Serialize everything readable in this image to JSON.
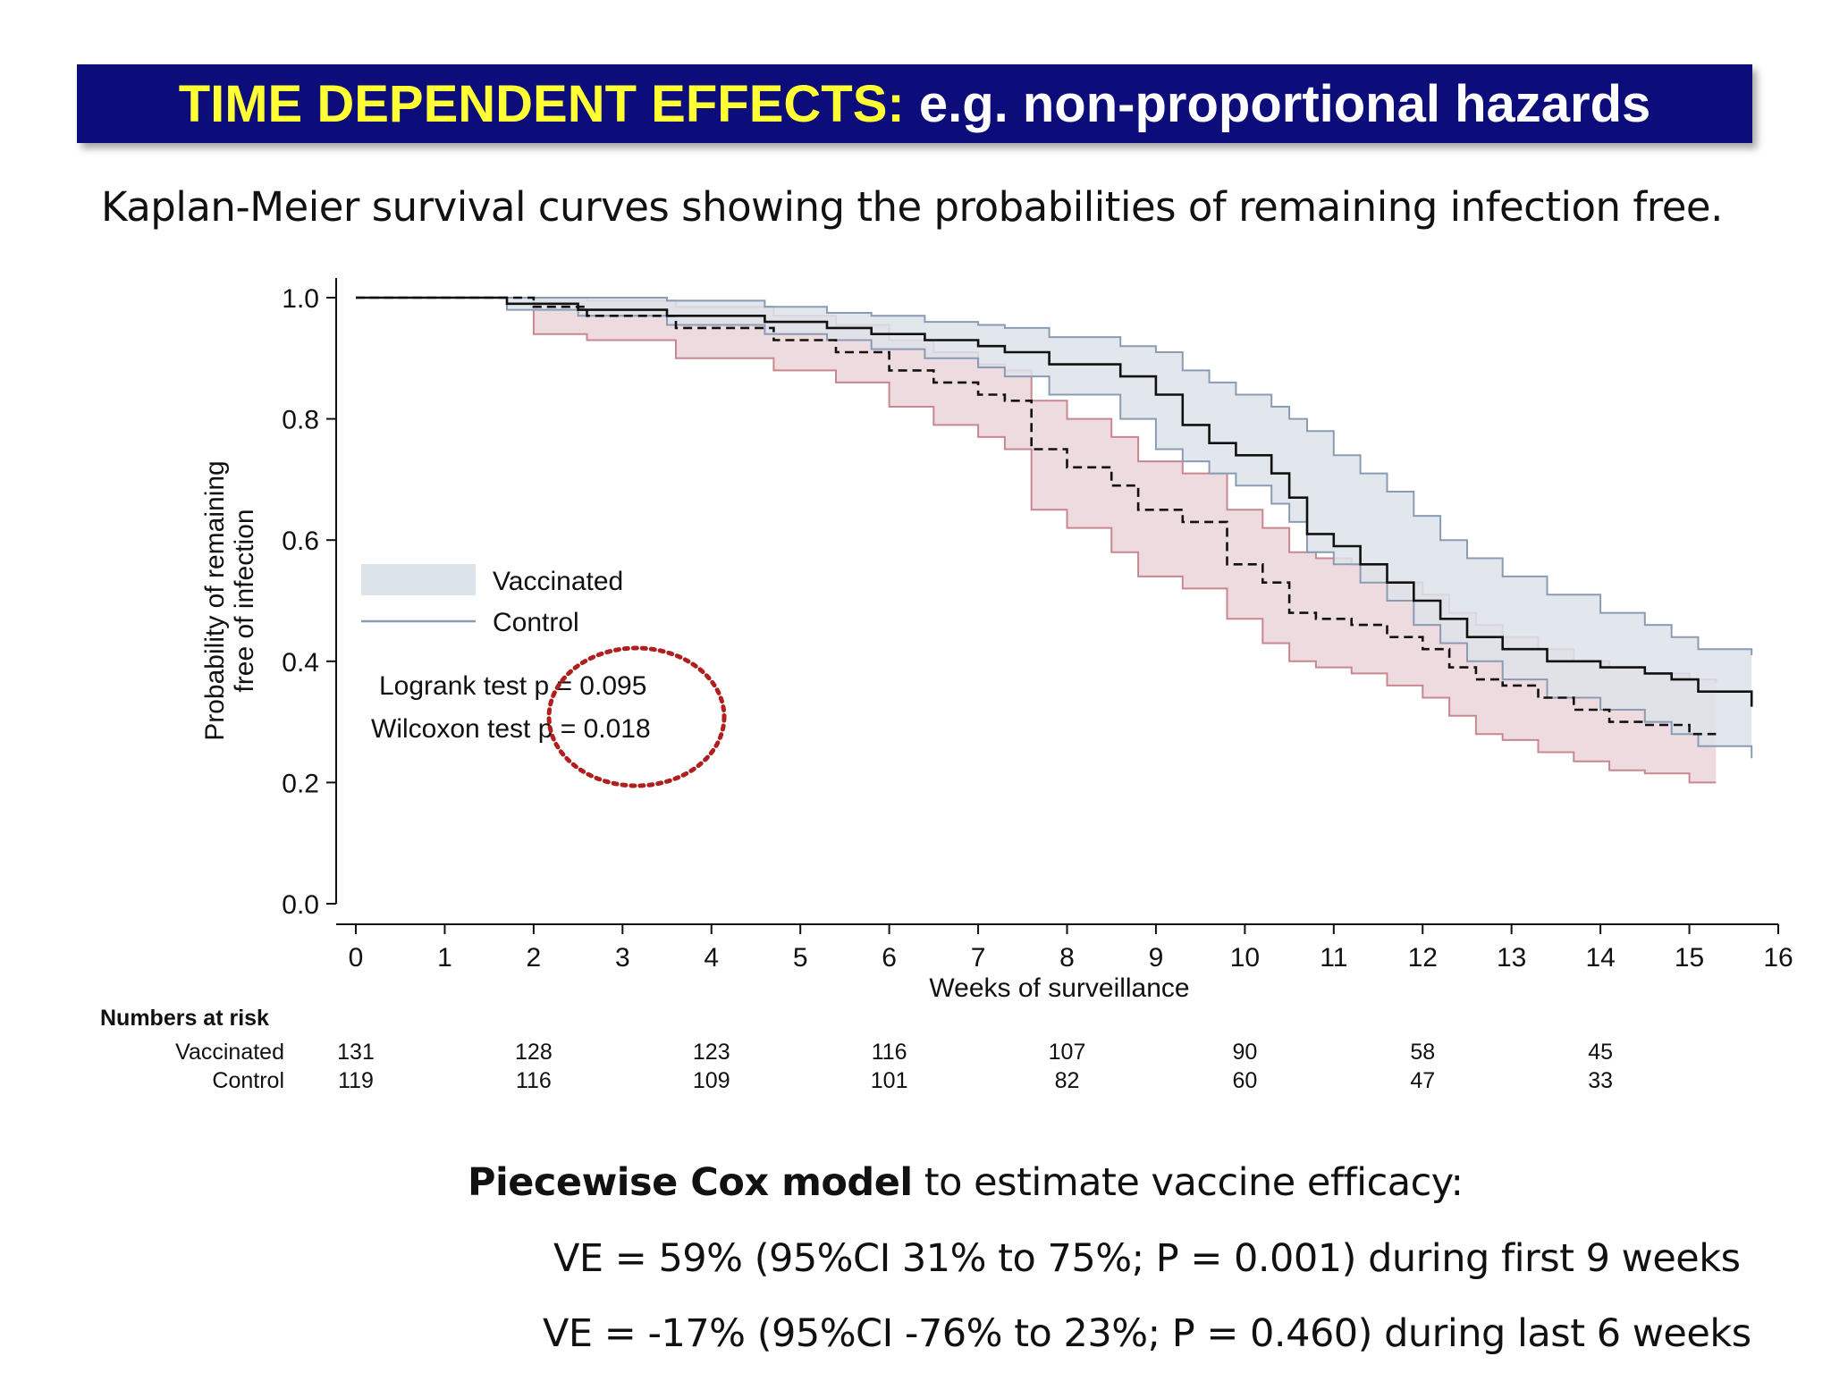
{
  "banner": {
    "highlight": "TIME DEPENDENT EFFECTS:",
    "rest": " e.g. non-proportional hazards"
  },
  "subtitle": "Kaplan-Meier survival curves showing the probabilities of remaining infection free.",
  "chart_data": {
    "type": "line",
    "xlabel": "Weeks of surveillance",
    "ylabel": [
      "Probability of remaining",
      "free of infection"
    ],
    "xlim": [
      0,
      16
    ],
    "ylim": [
      0,
      1.0
    ],
    "xticks": [
      0,
      1,
      2,
      3,
      4,
      5,
      6,
      7,
      8,
      9,
      10,
      11,
      12,
      13,
      14,
      15,
      16
    ],
    "yticks": [
      "0.0",
      "0.2",
      "0.4",
      "0.6",
      "0.8",
      "1.0"
    ],
    "legend": {
      "position": "middle-left",
      "entries": [
        "Vaccinated",
        "Control"
      ]
    },
    "series": [
      {
        "name": "Vaccinated",
        "style": "solid",
        "ci_color": "#dde3ea",
        "ci_edge": "#8a9cb4",
        "x": [
          0,
          1.7,
          2.5,
          3.5,
          4.6,
          5.3,
          5.8,
          6.4,
          7.0,
          7.3,
          7.8,
          8.6,
          9.0,
          9.3,
          9.6,
          9.9,
          10.3,
          10.5,
          10.7,
          11.0,
          11.3,
          11.6,
          11.9,
          12.2,
          12.5,
          12.9,
          13.4,
          14.0,
          14.5,
          14.8,
          15.1,
          15.7
        ],
        "y": [
          1.0,
          0.99,
          0.98,
          0.97,
          0.96,
          0.95,
          0.94,
          0.93,
          0.92,
          0.91,
          0.89,
          0.87,
          0.84,
          0.79,
          0.76,
          0.74,
          0.71,
          0.67,
          0.61,
          0.59,
          0.56,
          0.53,
          0.5,
          0.47,
          0.44,
          0.42,
          0.4,
          0.39,
          0.38,
          0.37,
          0.35,
          0.325
        ],
        "upper": [
          1.0,
          1.0,
          1.0,
          0.995,
          0.985,
          0.975,
          0.97,
          0.96,
          0.955,
          0.95,
          0.935,
          0.92,
          0.91,
          0.88,
          0.86,
          0.84,
          0.82,
          0.8,
          0.78,
          0.74,
          0.71,
          0.68,
          0.64,
          0.6,
          0.57,
          0.54,
          0.51,
          0.48,
          0.46,
          0.44,
          0.42,
          0.41
        ],
        "lower": [
          1.0,
          0.98,
          0.97,
          0.955,
          0.94,
          0.93,
          0.915,
          0.9,
          0.885,
          0.87,
          0.84,
          0.8,
          0.75,
          0.73,
          0.71,
          0.69,
          0.66,
          0.63,
          0.58,
          0.56,
          0.53,
          0.5,
          0.46,
          0.43,
          0.4,
          0.37,
          0.34,
          0.32,
          0.3,
          0.28,
          0.26,
          0.24
        ]
      },
      {
        "name": "Control",
        "style": "dashed",
        "ci_color": "#ecd7dc",
        "ci_edge": "#c9878f",
        "x": [
          0,
          2.0,
          2.6,
          3.6,
          4.7,
          5.4,
          6.0,
          6.5,
          7.0,
          7.3,
          7.6,
          8.0,
          8.5,
          8.8,
          9.3,
          9.8,
          10.2,
          10.5,
          10.8,
          11.2,
          11.6,
          12.0,
          12.3,
          12.6,
          12.9,
          13.3,
          13.7,
          14.1,
          14.5,
          15.0,
          15.3
        ],
        "y": [
          1.0,
          0.985,
          0.97,
          0.95,
          0.93,
          0.91,
          0.88,
          0.86,
          0.84,
          0.83,
          0.75,
          0.72,
          0.69,
          0.65,
          0.63,
          0.56,
          0.53,
          0.48,
          0.47,
          0.46,
          0.44,
          0.42,
          0.39,
          0.37,
          0.36,
          0.34,
          0.32,
          0.3,
          0.295,
          0.28,
          0.28
        ],
        "upper": [
          1.0,
          1.0,
          0.995,
          0.985,
          0.97,
          0.955,
          0.93,
          0.91,
          0.89,
          0.88,
          0.83,
          0.8,
          0.77,
          0.73,
          0.71,
          0.65,
          0.62,
          0.58,
          0.57,
          0.56,
          0.53,
          0.51,
          0.48,
          0.46,
          0.44,
          0.42,
          0.4,
          0.39,
          0.38,
          0.37,
          0.365
        ],
        "lower": [
          1.0,
          0.94,
          0.93,
          0.9,
          0.88,
          0.86,
          0.82,
          0.79,
          0.77,
          0.75,
          0.65,
          0.62,
          0.58,
          0.54,
          0.52,
          0.47,
          0.43,
          0.4,
          0.39,
          0.38,
          0.36,
          0.34,
          0.31,
          0.28,
          0.27,
          0.25,
          0.235,
          0.22,
          0.215,
          0.2,
          0.2
        ]
      }
    ],
    "annotations": [
      "Logrank test p = 0.095",
      "Wilcoxon test p = 0.018"
    ]
  },
  "risk_table": {
    "title": "Numbers at risk",
    "weeks": [
      0,
      2,
      4,
      6,
      8,
      10,
      12,
      14
    ],
    "rows": [
      {
        "label": "Vaccinated",
        "values": [
          "131",
          "128",
          "123",
          "116",
          "107",
          "90",
          "58",
          "45"
        ]
      },
      {
        "label": "Control",
        "values": [
          "119",
          "116",
          "109",
          "101",
          "82",
          "60",
          "47",
          "33"
        ]
      }
    ]
  },
  "cox": {
    "bold": "Piecewise Cox model",
    "rest": " to estimate vaccine efficacy:",
    "line1": "VE = 59% (95%CI 31% to 75%; P = 0.001) during first 9 weeks",
    "line2": "VE = -17% (95%CI -76% to 23%; P = 0.460) during last 6 weeks"
  }
}
